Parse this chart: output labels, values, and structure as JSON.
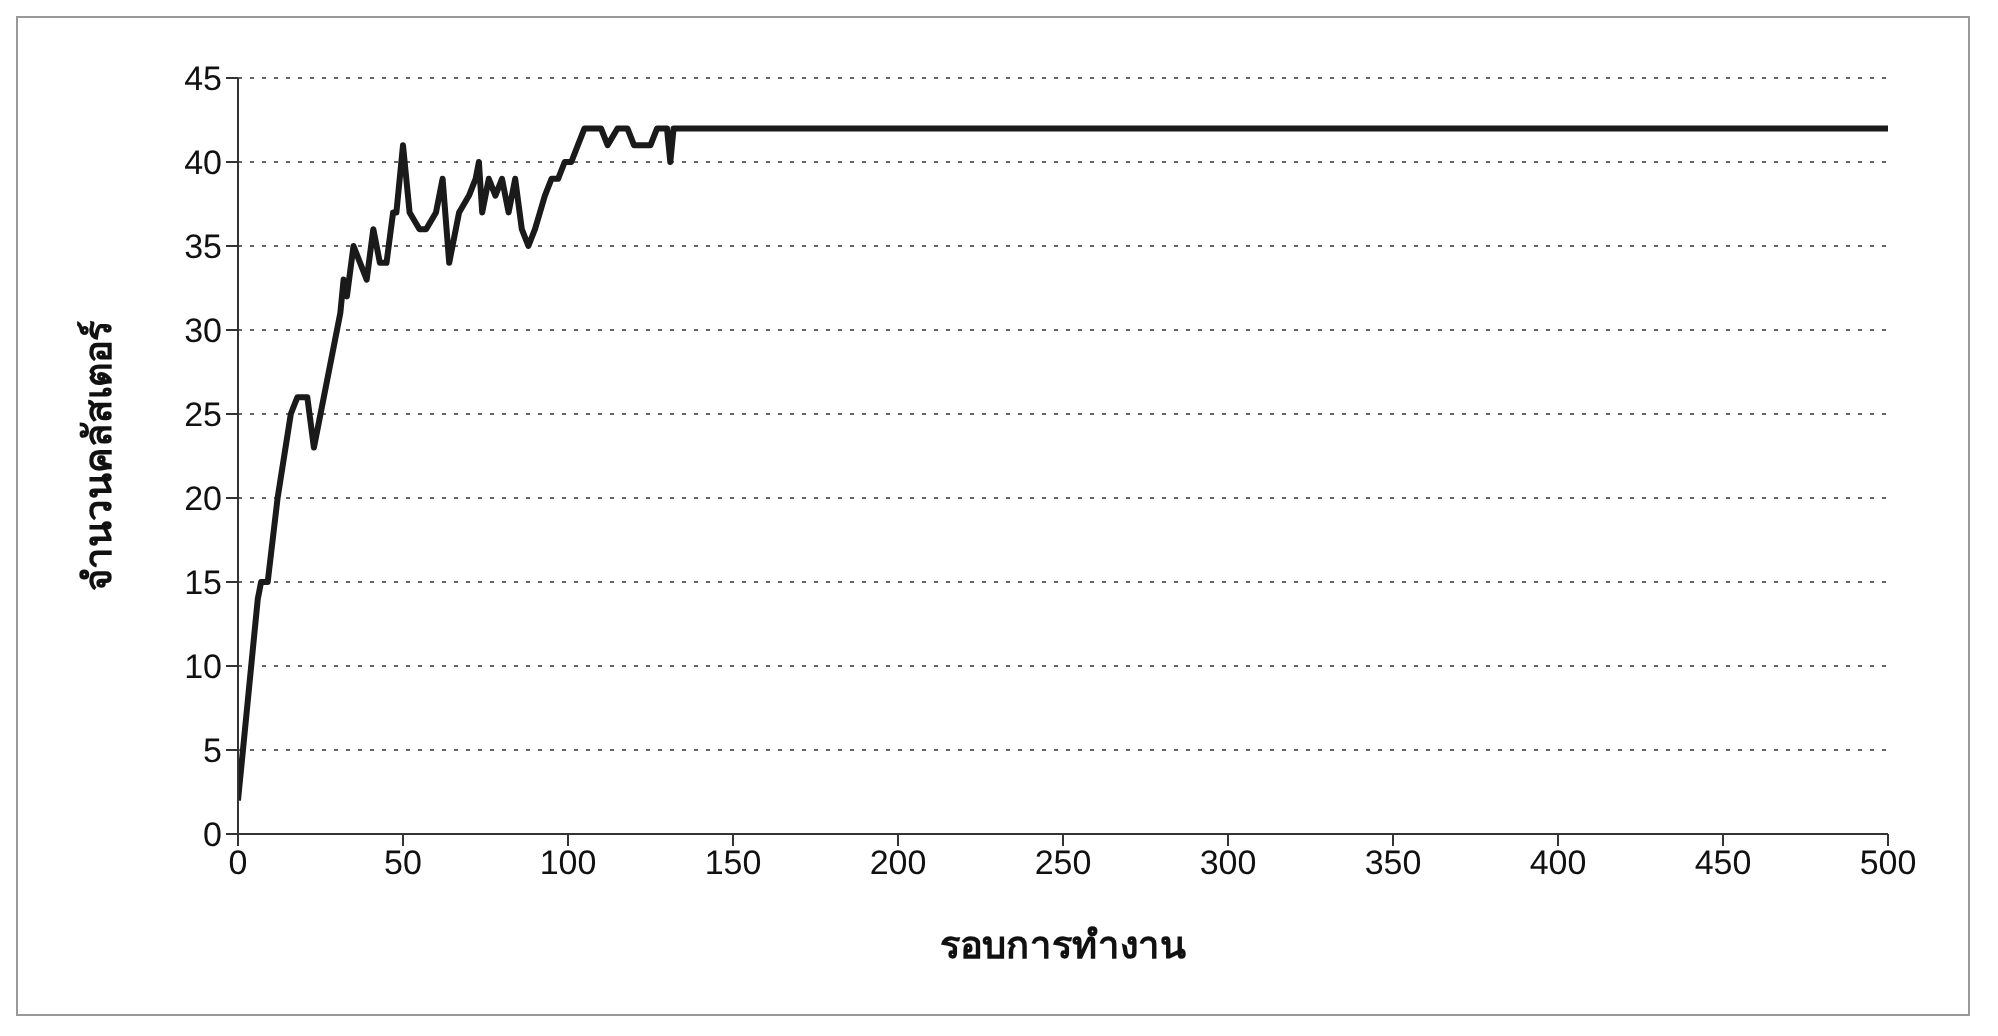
{
  "chart_data": {
    "type": "line",
    "xlabel": "รอบการทำงาน",
    "ylabel": "จำนวนคลัสเตอร์",
    "xlim": [
      0,
      500
    ],
    "xticks": [
      0,
      50,
      100,
      150,
      200,
      250,
      300,
      350,
      400,
      450,
      500
    ],
    "ylim": [
      0,
      45
    ],
    "yticks": [
      0,
      5,
      10,
      15,
      20,
      25,
      30,
      35,
      40,
      45
    ],
    "grid": "y",
    "marker": "none",
    "series": [
      {
        "color": "#1a1a1a",
        "x": [
          0,
          3,
          6,
          7,
          9,
          12,
          16,
          18,
          21,
          23,
          27,
          31,
          32,
          33,
          35,
          37,
          39,
          41,
          43,
          45,
          47,
          48,
          50,
          52,
          55,
          57,
          60,
          62,
          64,
          67,
          70,
          72,
          73,
          74,
          76,
          78,
          80,
          82,
          84,
          86,
          88,
          90,
          93,
          95,
          97,
          99,
          101,
          103,
          105,
          110,
          112,
          115,
          118,
          120,
          125,
          127,
          130,
          131,
          132,
          500
        ],
        "values": [
          2,
          8,
          14,
          15,
          15,
          20,
          25,
          26,
          26,
          23,
          27,
          31,
          33,
          32,
          35,
          34,
          33,
          36,
          34,
          34,
          37,
          37,
          41,
          37,
          36,
          36,
          37,
          39,
          34,
          37,
          38,
          39,
          40,
          37,
          39,
          38,
          39,
          37,
          39,
          36,
          35,
          36,
          38,
          39,
          39,
          40,
          40,
          41,
          42,
          42,
          41,
          42,
          42,
          41,
          41,
          42,
          42,
          40,
          42,
          42
        ]
      }
    ]
  }
}
